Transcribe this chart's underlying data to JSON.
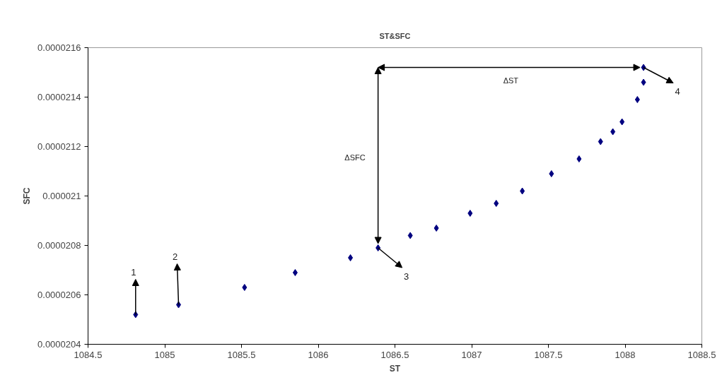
{
  "chart_data": {
    "type": "scatter",
    "title": "ST&SFC",
    "xlabel": "ST",
    "ylabel": "SFC",
    "x": [
      1084.81,
      1085.09,
      1085.52,
      1085.85,
      1086.21,
      1086.39,
      1086.6,
      1086.77,
      1086.99,
      1087.16,
      1087.33,
      1087.52,
      1087.7,
      1087.84,
      1087.92,
      1087.98,
      1088.08,
      1088.12,
      1088.12
    ],
    "series": [
      {
        "color": "#000080",
        "values": [
          2.052e-05,
          2.056e-05,
          2.063e-05,
          2.069e-05,
          2.075e-05,
          2.079e-05,
          2.084e-05,
          2.087e-05,
          2.093e-05,
          2.097e-05,
          2.102e-05,
          2.109e-05,
          2.115e-05,
          2.122e-05,
          2.126e-05,
          2.13e-05,
          2.139e-05,
          2.146e-05,
          2.152e-05
        ]
      }
    ],
    "marker": "diamond",
    "xlim": [
      1084.5,
      1088.5
    ],
    "xticks": [
      1084.5,
      1085,
      1085.5,
      1086,
      1086.5,
      1087,
      1087.5,
      1088,
      1088.5
    ],
    "ylim": [
      2.04e-05,
      2.16e-05
    ],
    "yticks": [
      {
        "value": 2.04e-05,
        "label": "0.0000204"
      },
      {
        "value": 2.06e-05,
        "label": "0.0000206"
      },
      {
        "value": 2.08e-05,
        "label": "0.0000208"
      },
      {
        "value": 2.1e-05,
        "label": "0.000021"
      },
      {
        "value": 2.12e-05,
        "label": "0.0000212"
      },
      {
        "value": 2.14e-05,
        "label": "0.0000214"
      },
      {
        "value": 2.16e-05,
        "label": "0.0000216"
      }
    ],
    "grid": false,
    "annotations": [
      {
        "text": "1",
        "x": 1084.81,
        "y": 2.052e-05
      },
      {
        "text": "2",
        "x": 1085.09,
        "y": 2.056e-05
      },
      {
        "text": "3",
        "x": 1086.39,
        "y": 2.079e-05
      },
      {
        "text": "4",
        "x": 1088.12,
        "y": 2.152e-05
      },
      "ΔSFC",
      "ΔST"
    ]
  }
}
